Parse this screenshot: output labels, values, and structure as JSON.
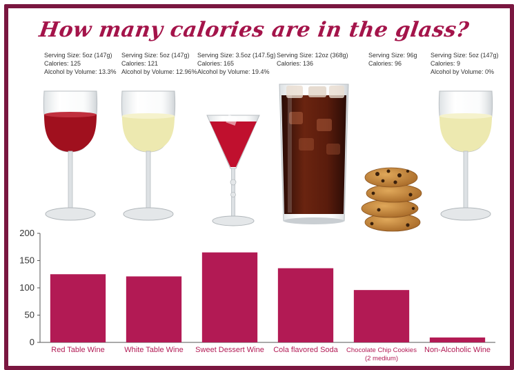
{
  "title": "How many calories are in the glass?",
  "items": [
    {
      "lines": [
        "Serving Size: 5oz (147g)",
        "Calories: 125",
        "Alcohol by Volume: 13.3%"
      ]
    },
    {
      "lines": [
        "Serving Size: 5oz (147g)",
        "Calories: 121",
        "Alcohol by Volume: 12.96%"
      ]
    },
    {
      "lines": [
        "Serving Size: 3.5oz (147.5g)",
        "Calories: 165",
        "Alcohol by Volume: 19.4%"
      ]
    },
    {
      "lines": [
        "Serving Size: 12oz (368g)",
        "Calories: 136"
      ]
    },
    {
      "lines": [
        "Serving Size: 96g",
        "Calories: 96"
      ]
    },
    {
      "lines": [
        "Serving Size: 5oz (147g)",
        "Calories: 9",
        "Alcohol by Volume: 0%"
      ]
    }
  ],
  "icons": [
    "red-wine-glass-icon",
    "white-wine-glass-icon",
    "dessert-wine-glass-icon",
    "cola-glass-icon",
    "cookie-stack-icon",
    "non-alcoholic-wine-glass-icon"
  ],
  "chart_data": {
    "type": "bar",
    "categories": [
      "Red Table Wine",
      "White Table Wine",
      "Sweet Dessert Wine",
      "Cola flavored Soda",
      "Chocolate Chip Cookies",
      "Non-Alcoholic Wine"
    ],
    "category_sublabels": [
      "",
      "",
      "",
      "",
      "(2 medium)",
      ""
    ],
    "values": [
      125,
      121,
      165,
      136,
      96,
      9
    ],
    "yticks": [
      0,
      50,
      100,
      150,
      200
    ],
    "ylim": [
      0,
      200
    ],
    "title": "",
    "xlabel": "",
    "ylabel": "",
    "grid": false,
    "bar_color": "#b21a54"
  },
  "colors": {
    "frame": "#7a1740",
    "title": "#a4144a",
    "bar": "#b21a54",
    "red_wine": "#a0101e",
    "white_wine": "#ede9b0",
    "dessert_wine": "#c0102e",
    "cola": "#4a1a0e",
    "cookie": "#c88840"
  }
}
